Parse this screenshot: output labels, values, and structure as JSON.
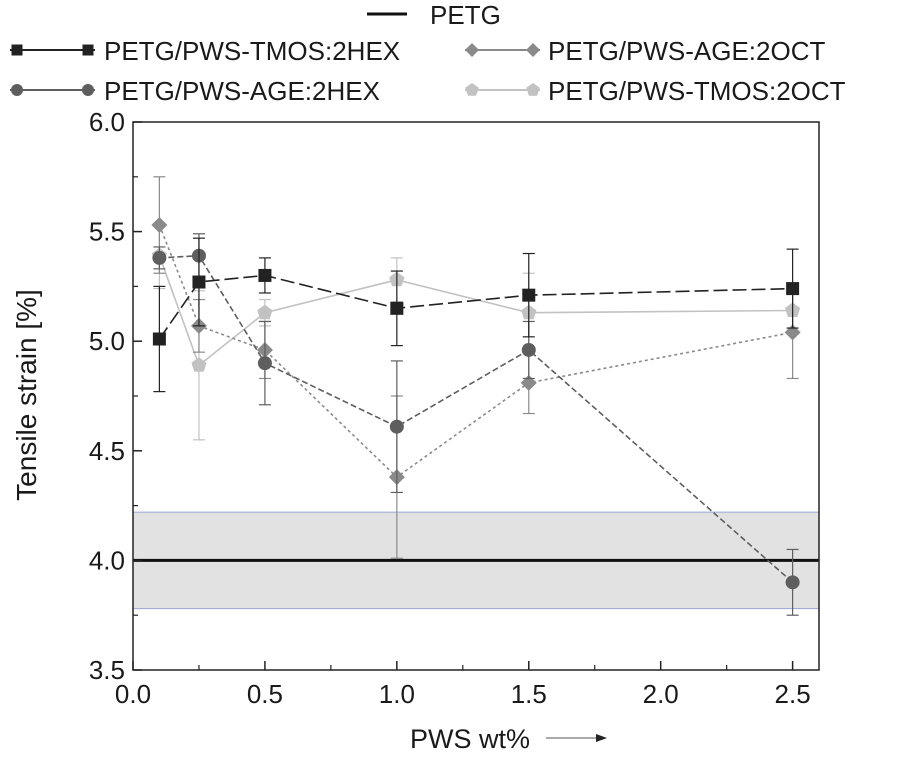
{
  "chart_data": {
    "type": "line",
    "title": "",
    "xlabel": "PWS wt%",
    "ylabel": "Tensile strain [%]",
    "xlim": [
      0.0,
      2.6
    ],
    "ylim": [
      3.5,
      6.0
    ],
    "x_ticks": [
      "0.0",
      "0.5",
      "1.0",
      "1.5",
      "2.0",
      "2.5"
    ],
    "y_ticks": [
      "3.5",
      "4.0",
      "4.5",
      "5.0",
      "5.5",
      "6.0"
    ],
    "reference": {
      "name": "PETG",
      "value": 4.0,
      "band": [
        3.78,
        4.22
      ],
      "color": "#111111",
      "band_color": "#e2e2e2",
      "band_edge_color": "#9aa6d6"
    },
    "series": [
      {
        "name": "PETG/PWS-TMOS:2HEX",
        "marker": "square",
        "color": "#222222",
        "dash": "14,5",
        "x": [
          0.1,
          0.25,
          0.5,
          1.0,
          1.5,
          2.5
        ],
        "values": [
          5.01,
          5.27,
          5.3,
          5.15,
          5.21,
          5.24
        ],
        "err": [
          0.24,
          0.2,
          0.08,
          0.17,
          0.19,
          0.18
        ]
      },
      {
        "name": "PETG/PWS-AGE:2OCT",
        "marker": "diamond",
        "color": "#8a8a8a",
        "dash": "3,3",
        "x": [
          0.1,
          0.25,
          0.5,
          1.0,
          1.5,
          2.5
        ],
        "values": [
          5.53,
          5.07,
          4.96,
          4.38,
          4.81,
          5.04
        ],
        "err": [
          0.22,
          0.12,
          0.13,
          0.37,
          0.14,
          0.21
        ]
      },
      {
        "name": "PETG/PWS-AGE:2HEX",
        "marker": "circle",
        "color": "#5e5e5e",
        "dash": "6,3",
        "x": [
          0.1,
          0.25,
          0.5,
          1.0,
          1.5,
          2.5
        ],
        "values": [
          5.38,
          5.39,
          4.9,
          4.61,
          4.96,
          3.9
        ],
        "err": [
          0.05,
          0.1,
          0.19,
          0.3,
          0.13,
          0.15
        ]
      },
      {
        "name": "PETG/PWS-TMOS:2OCT",
        "marker": "pentagon",
        "color": "#c2c2c2",
        "dash": "",
        "x": [
          0.1,
          0.25,
          0.5,
          1.0,
          1.5,
          2.5
        ],
        "values": [
          5.39,
          4.89,
          5.13,
          5.28,
          5.13,
          5.14
        ],
        "err": [
          0.15,
          0.34,
          0.06,
          0.1,
          0.18,
          0.1
        ]
      }
    ]
  }
}
